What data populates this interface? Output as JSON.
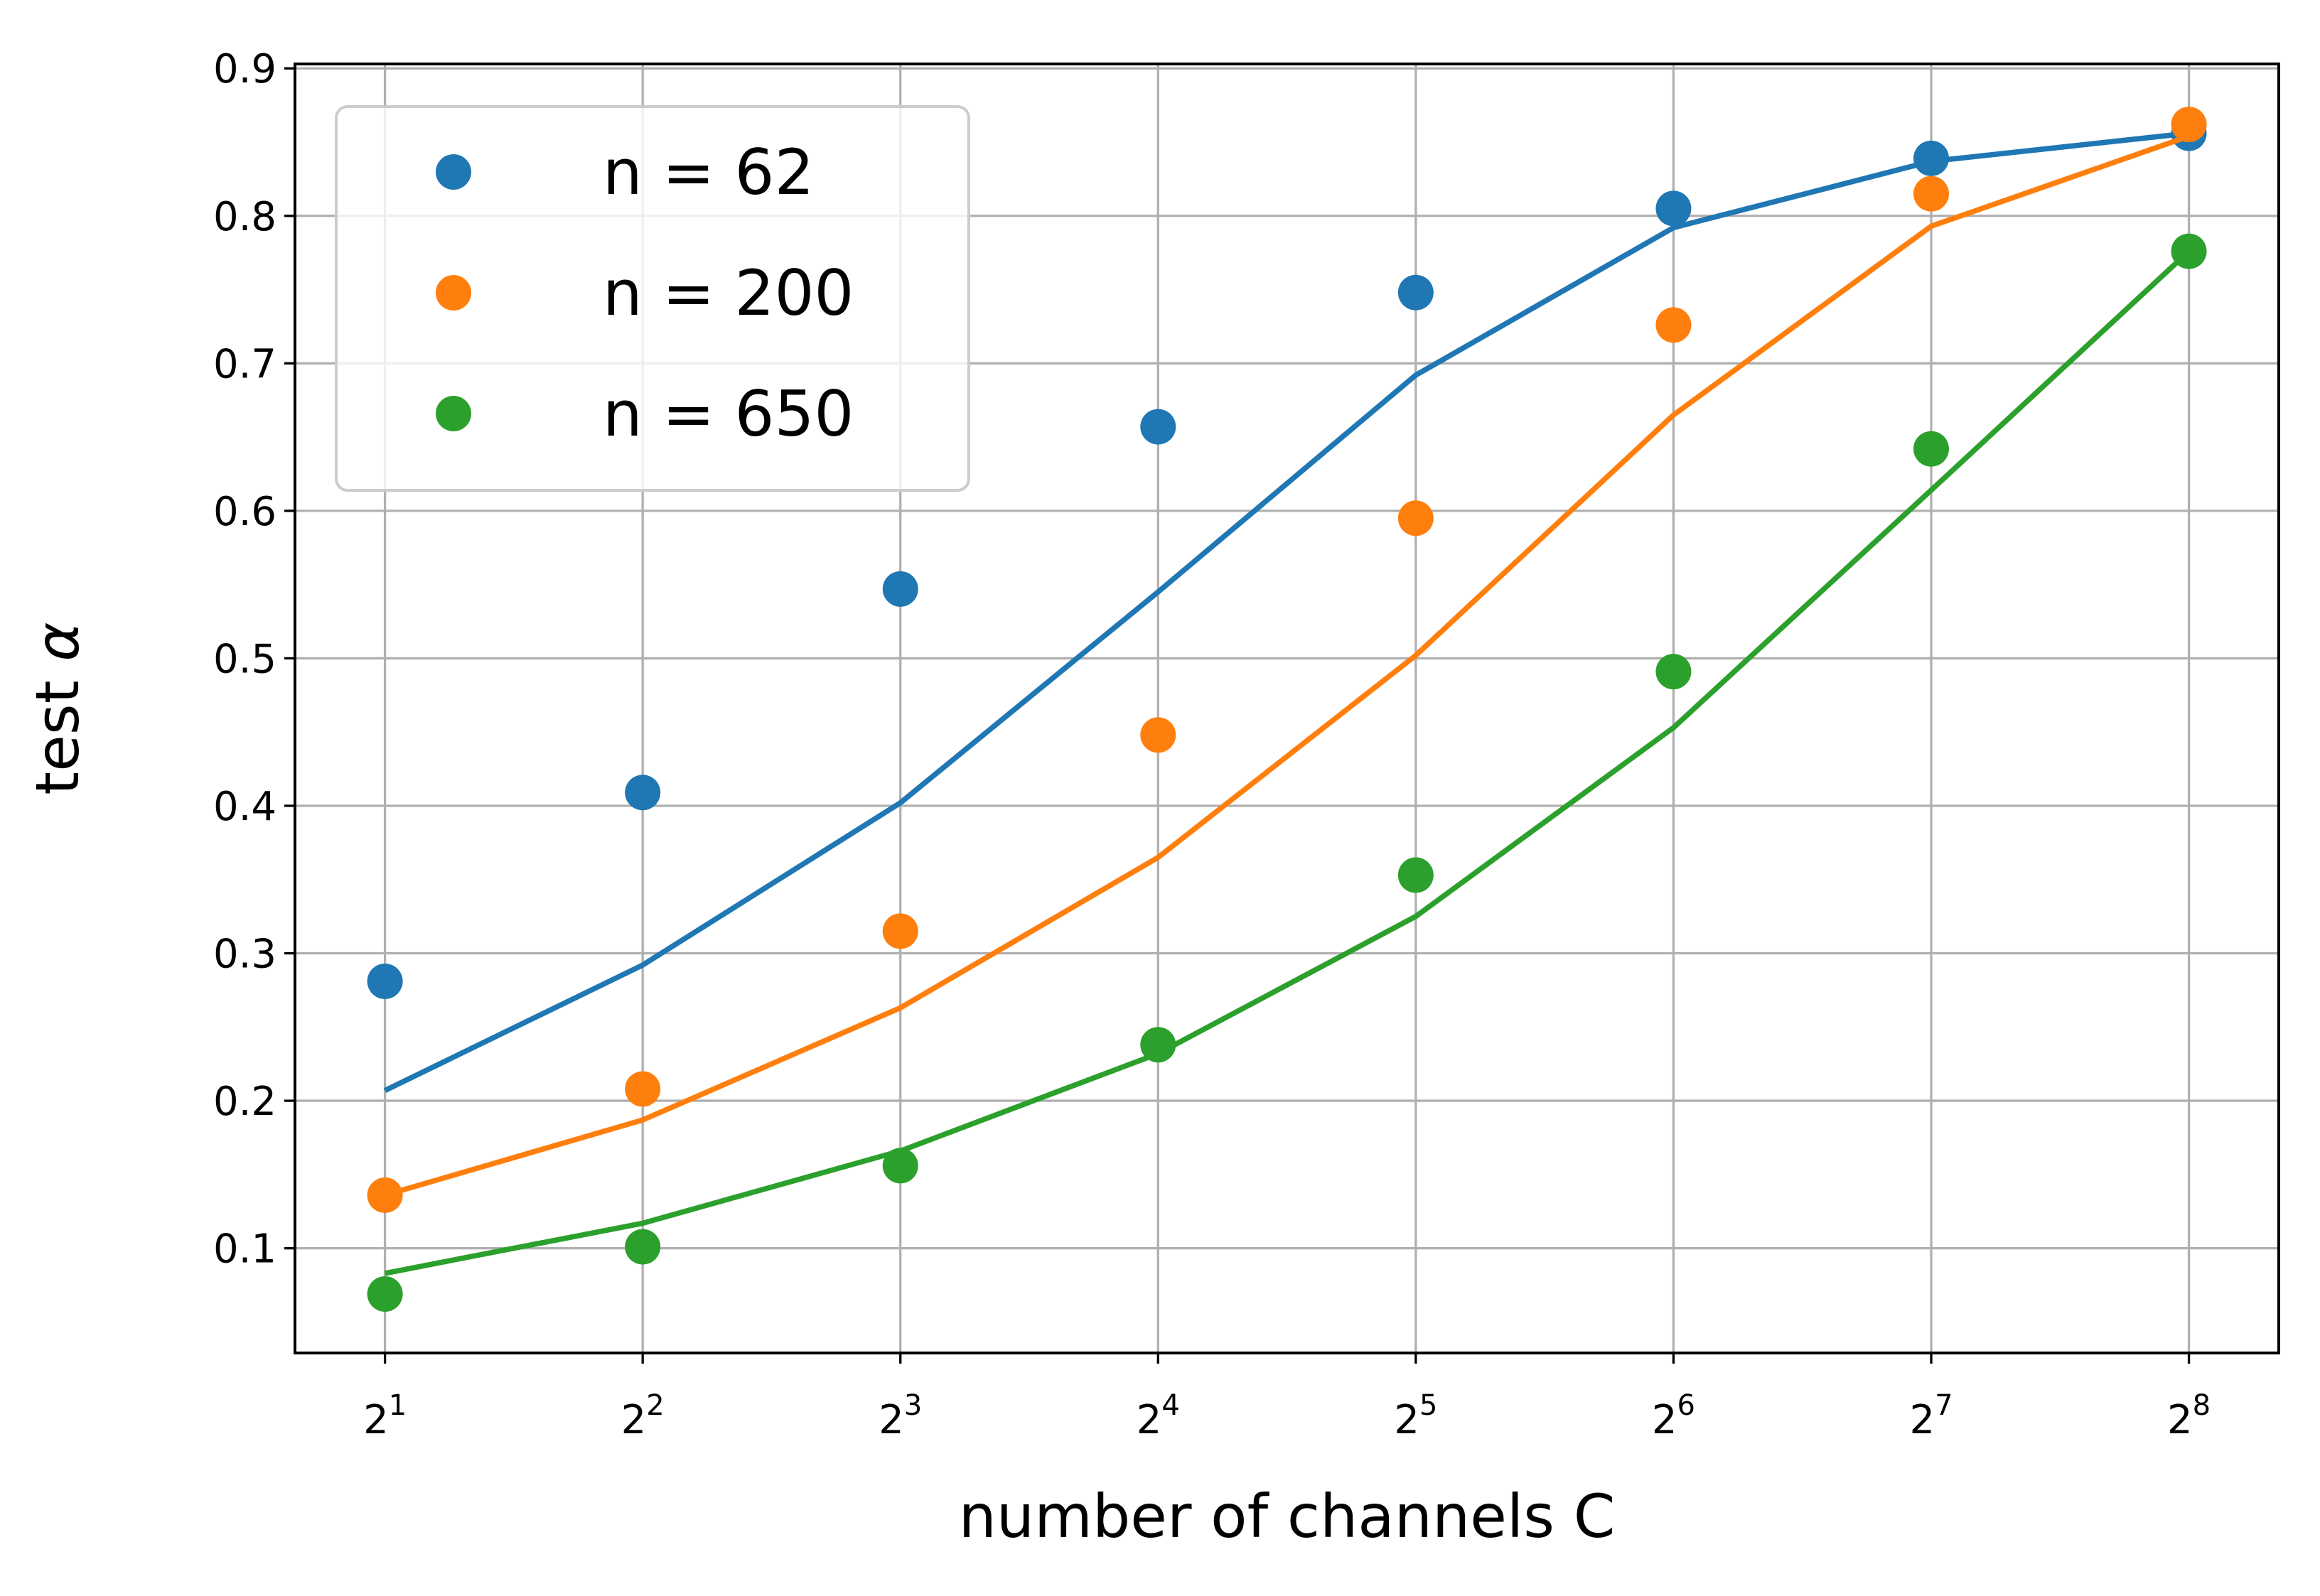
{
  "chart_data": {
    "type": "scatter",
    "title": "",
    "xlabel": "number of channels C",
    "ylabel_text": "test ",
    "ylabel_symbol": "α",
    "x_scale": "log2",
    "x_ticks": [
      {
        "value": 2,
        "base": "2",
        "exp": "1"
      },
      {
        "value": 4,
        "base": "2",
        "exp": "2"
      },
      {
        "value": 8,
        "base": "2",
        "exp": "3"
      },
      {
        "value": 16,
        "base": "2",
        "exp": "4"
      },
      {
        "value": 32,
        "base": "2",
        "exp": "5"
      },
      {
        "value": 64,
        "base": "2",
        "exp": "6"
      },
      {
        "value": 128,
        "base": "2",
        "exp": "7"
      },
      {
        "value": 256,
        "base": "2",
        "exp": "8"
      }
    ],
    "y_ticks": [
      "0.1",
      "0.2",
      "0.3",
      "0.4",
      "0.5",
      "0.6",
      "0.7",
      "0.8",
      "0.9"
    ],
    "xlim": [
      1.57,
      326
    ],
    "ylim": [
      0.029,
      0.903
    ],
    "grid": true,
    "legend_position": "top-left",
    "x": [
      2,
      4,
      8,
      16,
      32,
      64,
      128,
      256
    ],
    "series": [
      {
        "name": "n = 62",
        "color": "#1f77b4",
        "points": [
          0.281,
          0.409,
          0.547,
          0.657,
          0.748,
          0.805,
          0.839,
          0.856
        ],
        "fit": [
          0.207,
          0.292,
          0.402,
          0.545,
          0.692,
          0.792,
          0.837,
          0.856
        ]
      },
      {
        "name": "n = 200",
        "color": "#ff7f0e",
        "points": [
          0.136,
          0.208,
          0.315,
          0.448,
          0.595,
          0.726,
          0.815,
          0.862
        ],
        "fit": [
          0.136,
          0.187,
          0.263,
          0.365,
          0.502,
          0.665,
          0.793,
          0.854
        ]
      },
      {
        "name": "n = 650",
        "color": "#2ca02c",
        "points": [
          0.069,
          0.101,
          0.156,
          0.238,
          0.353,
          0.491,
          0.642,
          0.776
        ],
        "fit": [
          0.083,
          0.117,
          0.166,
          0.232,
          0.325,
          0.453,
          0.614,
          0.776
        ]
      }
    ]
  }
}
